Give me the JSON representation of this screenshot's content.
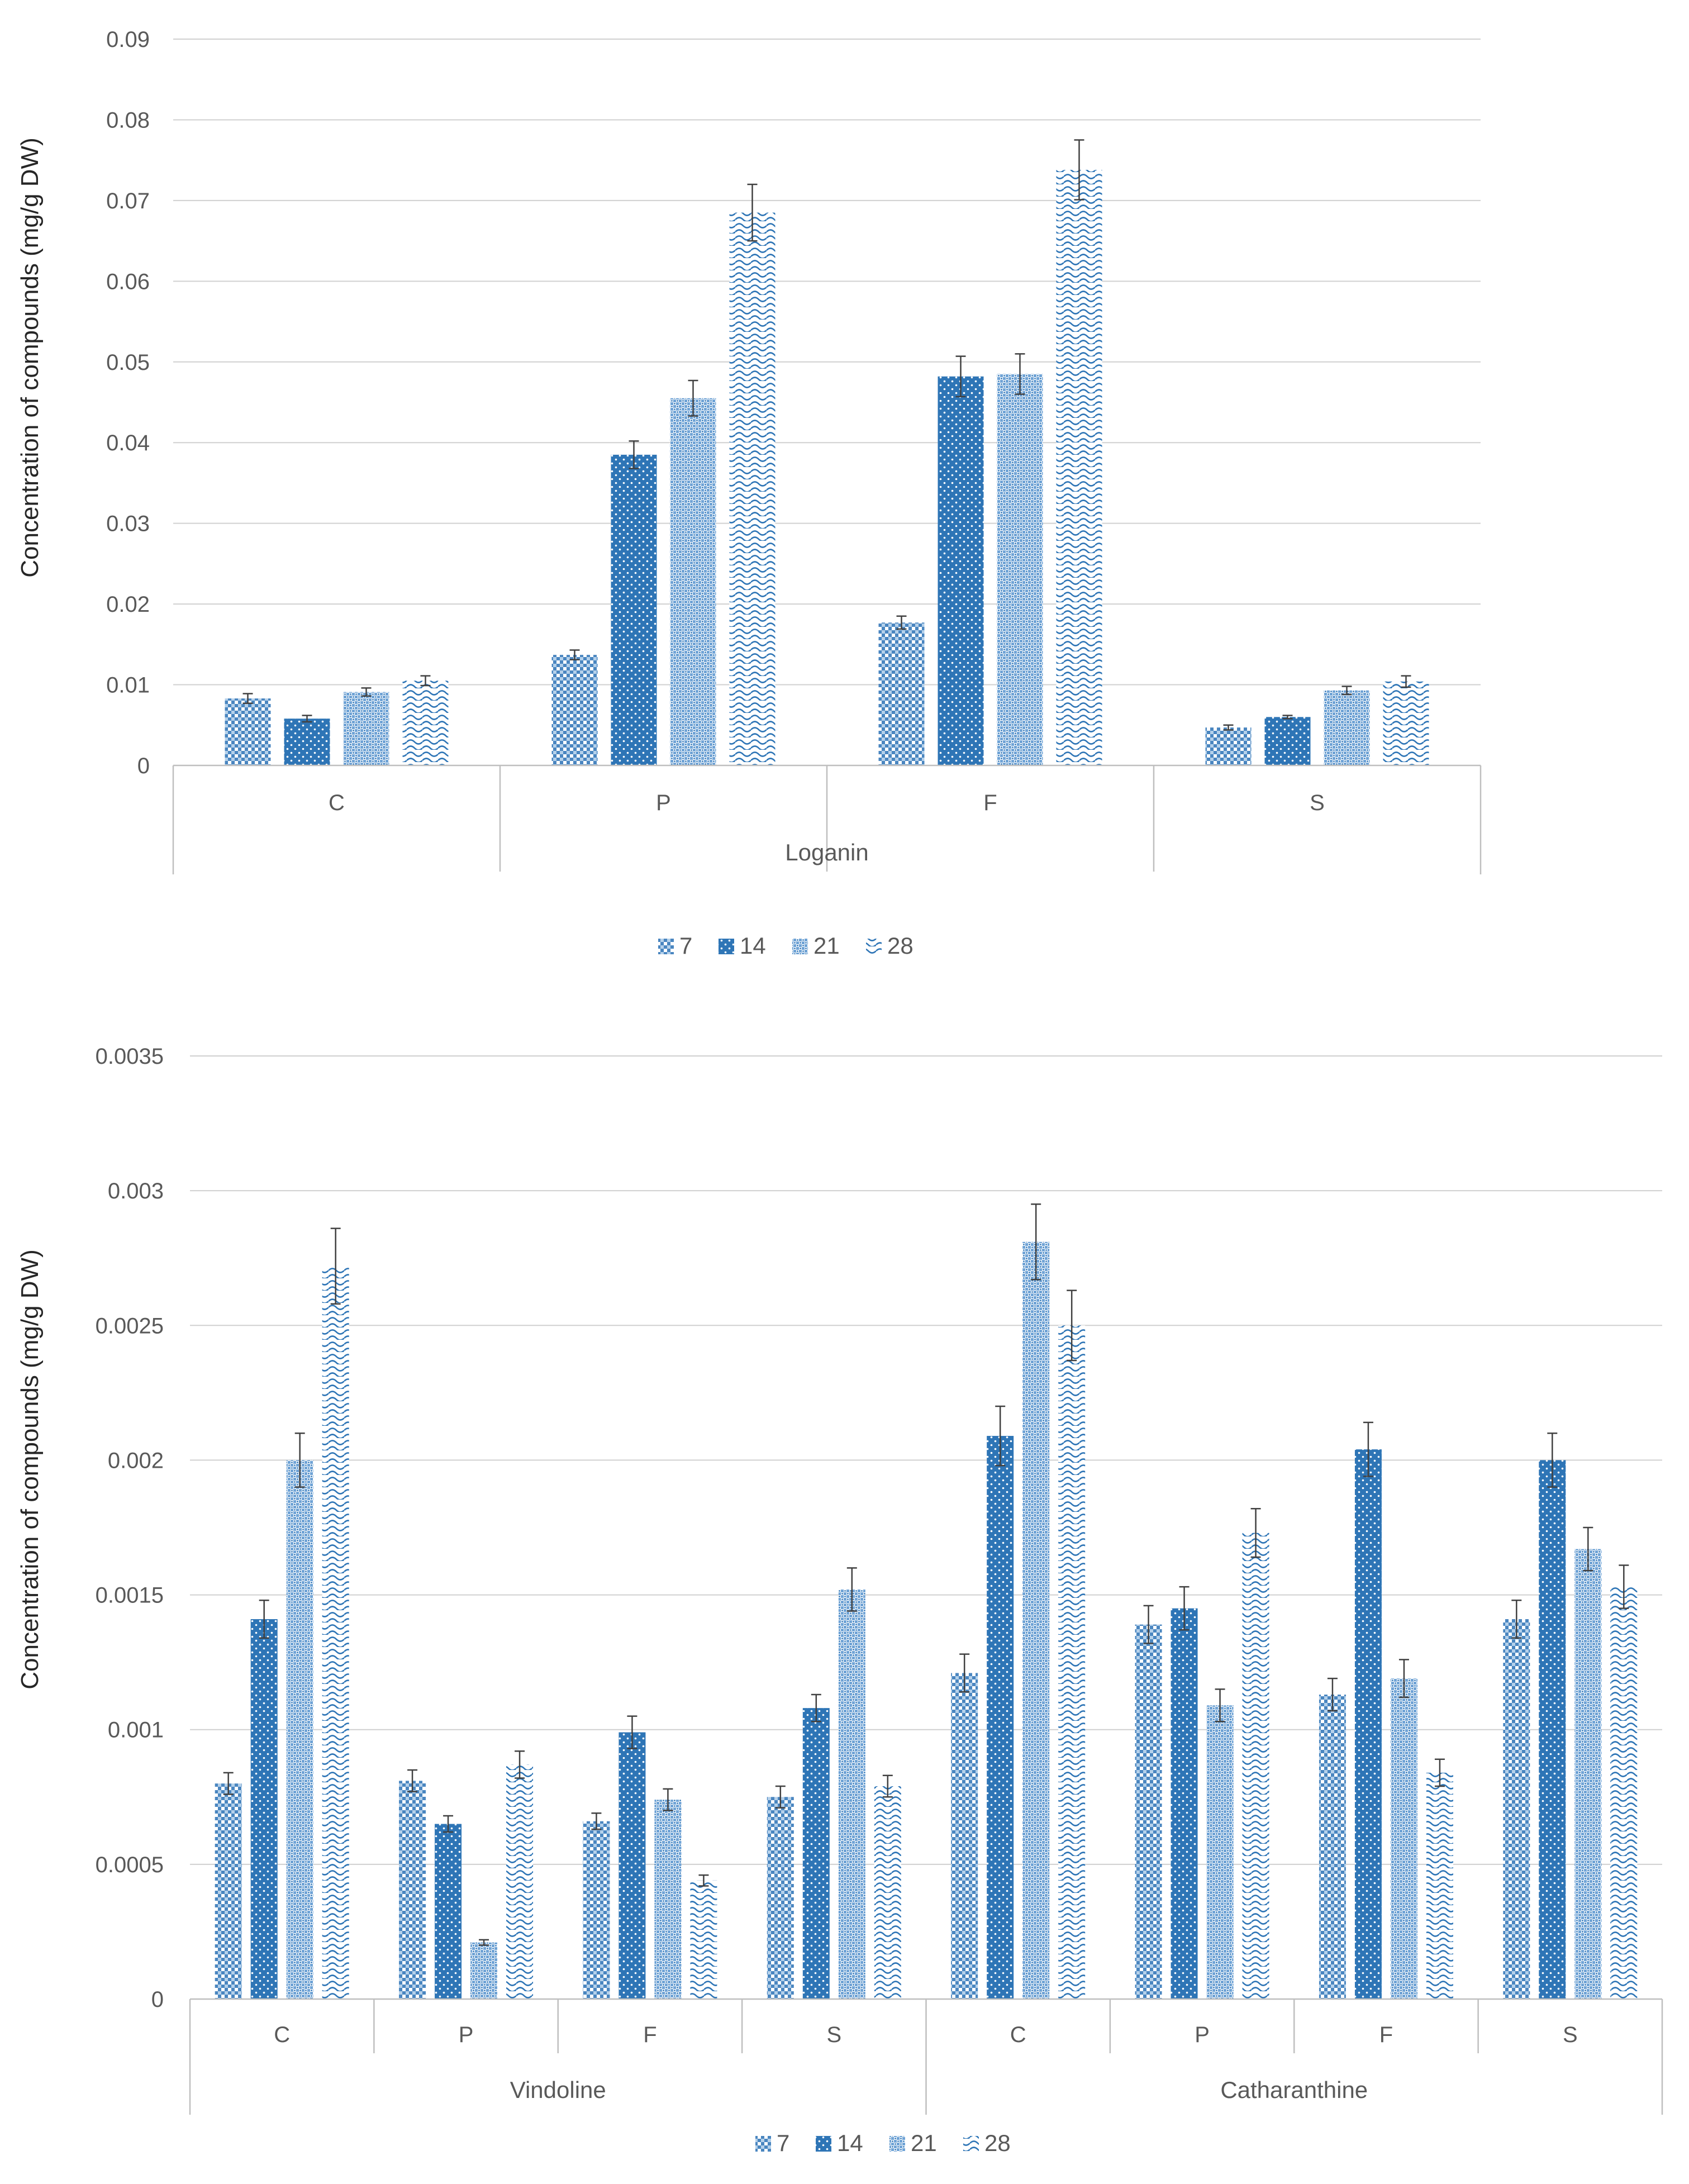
{
  "colors": {
    "series": "#2e75b6",
    "seriesLight": "#9dc3e6",
    "grid": "#d0d0d0",
    "axis": "#bfbfbf",
    "errorBar": "#404040"
  },
  "chart_data": [
    {
      "type": "bar",
      "title": "",
      "ylabel": "Concentration of compounds  (mg/g DW)",
      "ylim": [
        0,
        0.09
      ],
      "yticks": [
        0,
        0.01,
        0.02,
        0.03,
        0.04,
        0.05,
        0.06,
        0.07,
        0.08,
        0.09
      ],
      "ytick_labels": [
        "0",
        "0.01",
        "0.02",
        "0.03",
        "0.04",
        "0.05",
        "0.06",
        "0.07",
        "0.08",
        "0.09"
      ],
      "groups": [
        {
          "label": "Loganin",
          "categories": [
            "C",
            "P",
            "F",
            "S"
          ]
        }
      ],
      "series": [
        {
          "name": "7",
          "pattern": "checker",
          "values": [
            0.0083,
            0.0137,
            0.0177,
            0.0047
          ],
          "errors": [
            0.0006,
            0.0006,
            0.0008,
            0.0003
          ]
        },
        {
          "name": "14",
          "pattern": "dots",
          "values": [
            0.0058,
            0.0385,
            0.0482,
            0.006
          ],
          "errors": [
            0.0004,
            0.0017,
            0.0025,
            0.0002
          ]
        },
        {
          "name": "21",
          "pattern": "mesh",
          "values": [
            0.0091,
            0.0455,
            0.0485,
            0.0093
          ],
          "errors": [
            0.0005,
            0.0022,
            0.0025,
            0.0005
          ]
        },
        {
          "name": "28",
          "pattern": "wave",
          "values": [
            0.0105,
            0.0685,
            0.0738,
            0.0104
          ],
          "errors": [
            0.0006,
            0.0035,
            0.0037,
            0.0007
          ]
        }
      ],
      "legend": {
        "position": "bottom",
        "entries": [
          "7",
          "14",
          "21",
          "28"
        ]
      }
    },
    {
      "type": "bar",
      "title": "",
      "ylabel": "Concentration of compounds  (mg/g DW)",
      "ylim": [
        0,
        0.0035
      ],
      "yticks": [
        0,
        0.0005,
        0.001,
        0.0015,
        0.002,
        0.0025,
        0.003,
        0.0035
      ],
      "ytick_labels": [
        "0",
        "0.0005",
        "0.001",
        "0.0015",
        "0.002",
        "0.0025",
        "0.003",
        "0.0035"
      ],
      "groups": [
        {
          "label": "Vindoline",
          "categories": [
            "C",
            "P",
            "F",
            "S"
          ]
        },
        {
          "label": "Catharanthine",
          "categories": [
            "C",
            "P",
            "F",
            "S"
          ]
        }
      ],
      "series": [
        {
          "name": "7",
          "pattern": "checker",
          "values": [
            0.0008,
            0.00081,
            0.00066,
            0.00075,
            0.00121,
            0.00139,
            0.00113,
            0.00141
          ],
          "errors": [
            4e-05,
            4e-05,
            3e-05,
            4e-05,
            7e-05,
            7e-05,
            6e-05,
            7e-05
          ]
        },
        {
          "name": "14",
          "pattern": "dots",
          "values": [
            0.00141,
            0.00065,
            0.00099,
            0.00108,
            0.00209,
            0.00145,
            0.00204,
            0.002
          ],
          "errors": [
            7e-05,
            3e-05,
            6e-05,
            5e-05,
            0.00011,
            8e-05,
            0.0001,
            0.0001
          ]
        },
        {
          "name": "21",
          "pattern": "mesh",
          "values": [
            0.002,
            0.00021,
            0.00074,
            0.00152,
            0.00281,
            0.00109,
            0.00119,
            0.00167
          ],
          "errors": [
            0.0001,
            1e-05,
            4e-05,
            8e-05,
            0.00014,
            6e-05,
            7e-05,
            8e-05
          ]
        },
        {
          "name": "28",
          "pattern": "wave",
          "values": [
            0.00272,
            0.00087,
            0.00044,
            0.00079,
            0.0025,
            0.00173,
            0.00084,
            0.00153
          ],
          "errors": [
            0.00014,
            5e-05,
            2e-05,
            4e-05,
            0.00013,
            9e-05,
            5e-05,
            8e-05
          ]
        }
      ],
      "legend": {
        "position": "bottom",
        "entries": [
          "7",
          "14",
          "21",
          "28"
        ]
      }
    }
  ]
}
